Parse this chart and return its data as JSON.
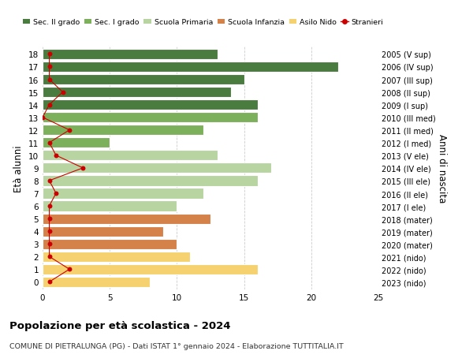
{
  "ages": [
    18,
    17,
    16,
    15,
    14,
    13,
    12,
    11,
    10,
    9,
    8,
    7,
    6,
    5,
    4,
    3,
    2,
    1,
    0
  ],
  "right_labels": [
    "2005 (V sup)",
    "2006 (IV sup)",
    "2007 (III sup)",
    "2008 (II sup)",
    "2009 (I sup)",
    "2010 (III med)",
    "2011 (II med)",
    "2012 (I med)",
    "2013 (V ele)",
    "2014 (IV ele)",
    "2015 (III ele)",
    "2016 (II ele)",
    "2017 (I ele)",
    "2018 (mater)",
    "2019 (mater)",
    "2020 (mater)",
    "2021 (nido)",
    "2022 (nido)",
    "2023 (nido)"
  ],
  "bar_values": [
    13,
    22,
    15,
    14,
    16,
    16,
    12,
    5,
    13,
    17,
    16,
    12,
    10,
    12.5,
    9,
    10,
    11,
    16,
    8
  ],
  "bar_colors": [
    "#4a7c3f",
    "#4a7c3f",
    "#4a7c3f",
    "#4a7c3f",
    "#4a7c3f",
    "#7db05a",
    "#7db05a",
    "#7db05a",
    "#b8d4a0",
    "#b8d4a0",
    "#b8d4a0",
    "#b8d4a0",
    "#b8d4a0",
    "#d4814a",
    "#d4814a",
    "#d4814a",
    "#f5d170",
    "#f5d170",
    "#f5d170"
  ],
  "stranieri_values": [
    0.5,
    0.5,
    0.5,
    1.5,
    0.5,
    0,
    2,
    0.5,
    1,
    3,
    0.5,
    1,
    0.5,
    0.5,
    0.5,
    0.5,
    0.5,
    2,
    0.5
  ],
  "legend_labels": [
    "Sec. II grado",
    "Sec. I grado",
    "Scuola Primaria",
    "Scuola Infanzia",
    "Asilo Nido",
    "Stranieri"
  ],
  "legend_colors": [
    "#4a7c3f",
    "#7db05a",
    "#b8d4a0",
    "#d4814a",
    "#f5d170",
    "#cc0000"
  ],
  "title": "Popolazione per età scolastica - 2024",
  "subtitle": "COMUNE DI PIETRALUNGA (PG) - Dati ISTAT 1° gennaio 2024 - Elaborazione TUTTITALIA.IT",
  "ylabel": "Età alunni",
  "ylabel2": "Anni di nascita",
  "xlim": [
    0,
    25
  ],
  "xticks": [
    0,
    5,
    10,
    15,
    20,
    25
  ],
  "bar_height": 0.82,
  "stranieri_color": "#cc0000",
  "background_color": "#ffffff",
  "grid_color": "#cccccc"
}
